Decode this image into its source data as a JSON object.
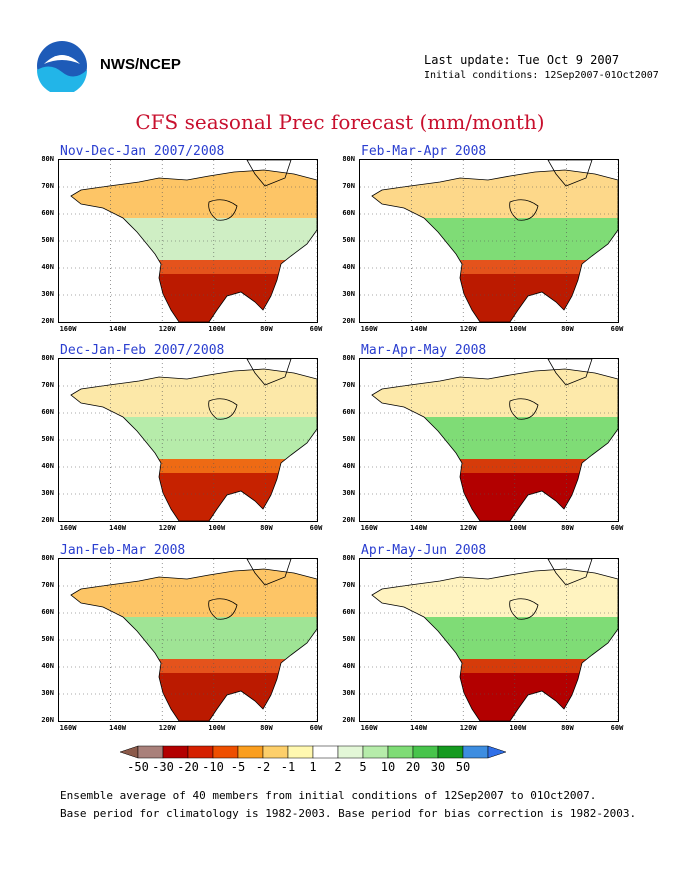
{
  "header": {
    "org": "NWS/NCEP",
    "last_update": "Last update: Tue Oct 9 2007",
    "initial_conditions": "Initial conditions: 12Sep2007-01Oct2007"
  },
  "title": "CFS seasonal Prec forecast (mm/month)",
  "panels": [
    {
      "title": "Nov-Dec-Jan 2007/2008"
    },
    {
      "title": "Feb-Mar-Apr 2008"
    },
    {
      "title": "Dec-Jan-Feb 2007/2008"
    },
    {
      "title": "Mar-Apr-May 2008"
    },
    {
      "title": "Jan-Feb-Mar 2008"
    },
    {
      "title": "Apr-May-Jun 2008"
    }
  ],
  "lat_labels": [
    "80N",
    "70N",
    "60N",
    "50N",
    "40N",
    "30N",
    "20N"
  ],
  "lon_labels": [
    "160W",
    "140W",
    "120W",
    "100W",
    "80W",
    "60W"
  ],
  "legend": {
    "labels": [
      "-50",
      "-30",
      "-20",
      "-10",
      "-5",
      "-2",
      "-1",
      "1",
      "2",
      "5",
      "10",
      "20",
      "30",
      "50"
    ],
    "colors": [
      "#8b5a4a",
      "#a9807a",
      "#b30000",
      "#d52000",
      "#ee4f00",
      "#fa9e1f",
      "#fdcf6a",
      "#fff8b0",
      "#ffffff",
      "#e3f7d7",
      "#b6ecaa",
      "#7fdc76",
      "#48c44c",
      "#159a20",
      "#3d8de0",
      "#2f6fe8"
    ]
  },
  "footer": {
    "line1": "Ensemble average of 40 members from initial conditions of 12Sep2007 to 01Oct2007.",
    "line2": "Base period for climatology is 1982-2003. Base period for bias correction is 1982-2003."
  }
}
